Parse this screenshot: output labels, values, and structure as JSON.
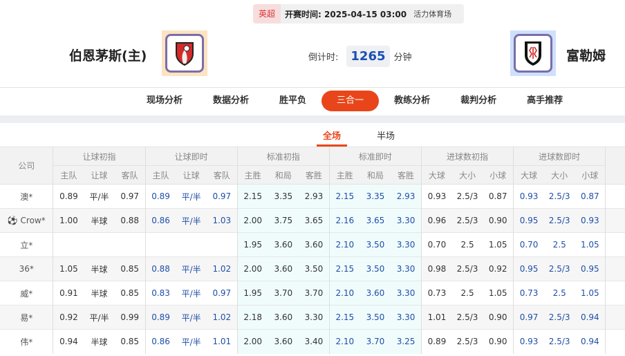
{
  "match": {
    "league": "英超",
    "kickoff": "开赛时间: 2025-04-15 03:00",
    "venue": "活力体育场",
    "home": "伯恩茅斯(主)",
    "away": "富勒姆",
    "countdown_label": "倒计时:",
    "countdown_value": "1265",
    "countdown_unit": "分钟",
    "colors": {
      "league": "#dd3333",
      "accent": "#e8461a",
      "countdown": "#1a4fb4"
    }
  },
  "nav": [
    "现场分析",
    "数据分析",
    "胜平负",
    "三合一",
    "教练分析",
    "裁判分析",
    "高手推荐"
  ],
  "nav_active": 3,
  "tabs": [
    "全场",
    "半场"
  ],
  "tab_active": 0,
  "table": {
    "company_header": "公司",
    "groups": [
      "让球初指",
      "让球即时",
      "标准初指",
      "标准即时",
      "进球数初指",
      "进球数即时"
    ],
    "subheaders": [
      "主队",
      "让球",
      "客队",
      "主队",
      "让球",
      "客队",
      "主胜",
      "和局",
      "客胜",
      "主胜",
      "和局",
      "客胜",
      "大球",
      "大小",
      "小球",
      "大球",
      "大小",
      "小球"
    ],
    "rows": [
      {
        "company": "澳*",
        "icon": "",
        "v": [
          "0.89",
          "平/半",
          "0.97",
          "0.89",
          "平/半",
          "0.97",
          "2.15",
          "3.35",
          "2.93",
          "2.15",
          "3.35",
          "2.93",
          "0.93",
          "2.5/3",
          "0.87",
          "0.93",
          "2.5/3",
          "0.87"
        ]
      },
      {
        "company": "Crow*",
        "icon": "soccer-ball-icon",
        "v": [
          "1.00",
          "半球",
          "0.88",
          "0.86",
          "平/半",
          "1.03",
          "2.00",
          "3.75",
          "3.65",
          "2.16",
          "3.65",
          "3.30",
          "0.96",
          "2.5/3",
          "0.90",
          "0.95",
          "2.5/3",
          "0.93"
        ]
      },
      {
        "company": "立*",
        "icon": "",
        "v": [
          "",
          "",
          "",
          "",
          "",
          "",
          "1.95",
          "3.60",
          "3.60",
          "2.10",
          "3.50",
          "3.30",
          "0.70",
          "2.5",
          "1.05",
          "0.70",
          "2.5",
          "1.05"
        ]
      },
      {
        "company": "36*",
        "icon": "",
        "v": [
          "1.05",
          "半球",
          "0.85",
          "0.88",
          "平/半",
          "1.02",
          "2.00",
          "3.60",
          "3.50",
          "2.15",
          "3.50",
          "3.30",
          "0.98",
          "2.5/3",
          "0.92",
          "0.95",
          "2.5/3",
          "0.95"
        ]
      },
      {
        "company": "威*",
        "icon": "",
        "v": [
          "0.91",
          "半球",
          "0.85",
          "0.83",
          "平/半",
          "0.97",
          "1.95",
          "3.70",
          "3.70",
          "2.10",
          "3.60",
          "3.30",
          "0.73",
          "2.5",
          "1.05",
          "0.73",
          "2.5",
          "1.05"
        ]
      },
      {
        "company": "易*",
        "icon": "",
        "v": [
          "0.92",
          "平/半",
          "0.99",
          "0.89",
          "平/半",
          "1.02",
          "2.18",
          "3.60",
          "3.30",
          "2.15",
          "3.50",
          "3.30",
          "1.01",
          "2.5/3",
          "0.90",
          "0.97",
          "2.5/3",
          "0.94"
        ]
      },
      {
        "company": "伟*",
        "icon": "",
        "v": [
          "0.94",
          "半球",
          "0.85",
          "0.86",
          "平/半",
          "1.01",
          "2.00",
          "3.60",
          "3.40",
          "2.10",
          "3.70",
          "3.25",
          "0.89",
          "2.5/3",
          "0.90",
          "0.93",
          "2.5/3",
          "0.94"
        ]
      }
    ]
  }
}
